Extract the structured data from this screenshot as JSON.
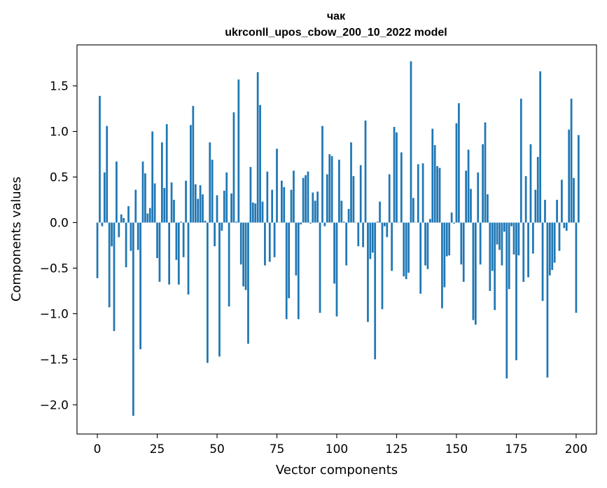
{
  "chart_data": {
    "type": "bar",
    "title": "чак",
    "subtitle": "ukrconll_upos_cbow_200_10_2022 model",
    "xlabel": "Vector components",
    "ylabel": "Components values",
    "xlim": [
      -8.5,
      208.5
    ],
    "ylim": [
      -2.32,
      1.95
    ],
    "x_ticks": [
      0,
      25,
      50,
      75,
      100,
      125,
      150,
      175,
      200
    ],
    "x_tick_labels": [
      "0",
      "25",
      "50",
      "75",
      "100",
      "125",
      "150",
      "175",
      "200"
    ],
    "y_ticks": [
      -2.0,
      -1.5,
      -1.0,
      -0.5,
      0.0,
      0.5,
      1.0,
      1.5
    ],
    "y_tick_labels": [
      "−2.0",
      "−1.5",
      "−1.0",
      "−0.5",
      "0.0",
      "0.5",
      "1.0",
      "1.5"
    ],
    "grid": false,
    "color": "#1f77b4",
    "values": [
      -0.61,
      1.39,
      -0.04,
      0.55,
      1.06,
      -0.93,
      -0.26,
      -1.19,
      0.67,
      -0.16,
      0.09,
      0.05,
      -0.49,
      0.18,
      -0.31,
      -2.12,
      0.36,
      -0.3,
      -1.39,
      0.67,
      0.54,
      0.1,
      0.16,
      1.0,
      0.43,
      -0.39,
      -0.65,
      0.88,
      0.38,
      1.08,
      -0.68,
      0.44,
      0.25,
      -0.41,
      -0.68,
      0.01,
      -0.38,
      0.46,
      -0.79,
      1.07,
      1.28,
      0.42,
      0.26,
      0.41,
      0.31,
      0.02,
      -1.54,
      0.88,
      0.69,
      -0.26,
      0.3,
      -1.47,
      -0.09,
      0.35,
      0.55,
      -0.92,
      0.32,
      1.21,
      0.01,
      1.57,
      -0.46,
      -0.7,
      -0.74,
      -1.33,
      0.61,
      0.22,
      0.21,
      1.65,
      1.29,
      0.23,
      -0.47,
      0.56,
      -0.43,
      0.36,
      -0.38,
      0.81,
      0.0,
      0.46,
      0.39,
      -1.06,
      -0.83,
      0.36,
      0.57,
      -0.58,
      -1.06,
      -0.02,
      0.49,
      0.52,
      0.56,
      -0.01,
      0.33,
      0.24,
      0.34,
      -0.99,
      1.06,
      -0.04,
      0.53,
      0.75,
      0.73,
      -0.67,
      -1.03,
      0.69,
      0.24,
      0.01,
      -0.47,
      0.15,
      0.88,
      0.51,
      0.0,
      -0.26,
      0.63,
      -0.27,
      1.12,
      -1.09,
      -0.4,
      -0.33,
      -1.5,
      0.01,
      0.23,
      -0.95,
      -0.04,
      -0.16,
      0.53,
      -0.53,
      1.05,
      0.99,
      0.0,
      0.77,
      -0.59,
      -0.62,
      -0.55,
      1.77,
      0.27,
      0.0,
      0.64,
      -0.78,
      0.65,
      -0.47,
      -0.51,
      0.04,
      1.03,
      0.85,
      0.62,
      0.6,
      -0.94,
      -0.71,
      -0.37,
      -0.36,
      0.11,
      -0.01,
      1.09,
      1.31,
      -0.46,
      -0.65,
      0.57,
      0.8,
      0.37,
      -1.07,
      -1.12,
      0.55,
      -0.46,
      0.86,
      1.1,
      0.31,
      -0.75,
      -0.53,
      -0.96,
      -0.24,
      -0.3,
      -0.47,
      -0.1,
      -1.71,
      -0.73,
      -0.04,
      -0.35,
      -1.51,
      -0.36,
      1.36,
      -0.65,
      0.51,
      -0.6,
      0.86,
      -0.34,
      0.36,
      0.72,
      1.66,
      -0.86,
      0.25,
      -1.7,
      -0.58,
      -0.52,
      -0.44,
      0.25,
      -0.31,
      0.47,
      -0.06,
      -0.09,
      1.02,
      1.36,
      0.49,
      -0.99,
      0.96
    ]
  }
}
